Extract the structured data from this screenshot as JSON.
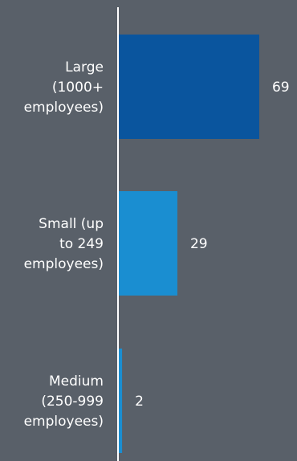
{
  "chart_data": {
    "type": "bar",
    "orientation": "horizontal",
    "categories": [
      [
        "Large",
        "(1000+",
        "employees)"
      ],
      [
        "Small (up",
        "to 249",
        "employees)"
      ],
      [
        "Medium",
        "(250-999",
        "employees)"
      ]
    ],
    "values": [
      69,
      29,
      2
    ],
    "data_labels": [
      "69",
      "29",
      "2"
    ],
    "xlim": [
      0,
      100
    ],
    "grid": false,
    "legend": "none",
    "colors": [
      "#0a559e",
      "#1a8ed1",
      "#1a8ed1"
    ],
    "axis_color": "#ffffff",
    "text_color": "#ffffff",
    "background": "#596069"
  }
}
